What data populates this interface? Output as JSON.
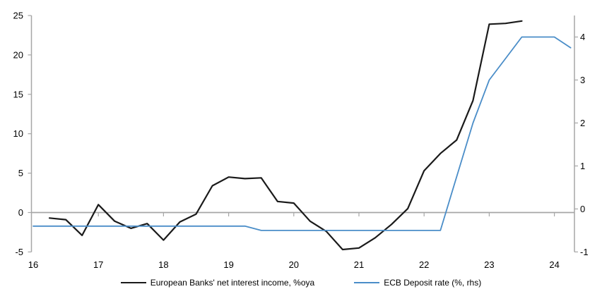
{
  "chart_data": {
    "type": "line",
    "title": "",
    "background": "#ffffff",
    "grid": "zero-line-only",
    "legend_position": "bottom",
    "x_axis": {
      "tick_labels": [
        "16",
        "17",
        "18",
        "19",
        "20",
        "21",
        "22",
        "23",
        "24"
      ],
      "tick_years": [
        16,
        17,
        18,
        19,
        20,
        21,
        22,
        23,
        24
      ],
      "range": [
        16,
        24.3
      ]
    },
    "left_axis": {
      "ticks": [
        25,
        20,
        15,
        10,
        5,
        0,
        -5
      ],
      "range": [
        -5,
        25
      ]
    },
    "right_axis": {
      "ticks": [
        4,
        3,
        2,
        1,
        0,
        -1
      ],
      "range": [
        -1,
        4.5
      ]
    },
    "axis_color": "#a6a6a6",
    "zero_line_color": "#a6a6a6",
    "series": [
      {
        "name": "European Banks' net interest income, %oya",
        "axis": "left",
        "color": "#1a1a1a",
        "width": 2.2,
        "x": [
          16.25,
          16.5,
          16.75,
          17.0,
          17.25,
          17.5,
          17.75,
          18.0,
          18.25,
          18.5,
          18.75,
          19.0,
          19.25,
          19.5,
          19.75,
          20.0,
          20.25,
          20.5,
          20.75,
          21.0,
          21.25,
          21.5,
          21.75,
          22.0,
          22.25,
          22.5,
          22.75,
          23.0,
          23.25,
          23.5
        ],
        "y": [
          -0.7,
          -0.9,
          -2.9,
          1.0,
          -1.1,
          -2.0,
          -1.4,
          -3.5,
          -1.2,
          -0.2,
          3.4,
          4.5,
          4.3,
          4.4,
          1.4,
          1.2,
          -1.1,
          -2.4,
          -4.7,
          -4.5,
          -3.2,
          -1.5,
          0.5,
          5.3,
          7.5,
          9.2,
          14.2,
          23.9,
          24.0,
          24.3
        ]
      },
      {
        "name": "ECB Deposit rate (%, rhs)",
        "axis": "right",
        "color": "#4a8dc8",
        "width": 1.8,
        "x": [
          16.0,
          16.25,
          16.5,
          16.75,
          17.0,
          17.25,
          17.5,
          17.75,
          18.0,
          18.25,
          18.5,
          18.75,
          19.0,
          19.25,
          19.5,
          19.75,
          20.0,
          20.25,
          20.5,
          20.75,
          21.0,
          21.25,
          21.5,
          21.75,
          22.0,
          22.25,
          22.5,
          22.75,
          23.0,
          23.25,
          23.5,
          23.75,
          24.0,
          24.25
        ],
        "y": [
          -0.4,
          -0.4,
          -0.4,
          -0.4,
          -0.4,
          -0.4,
          -0.4,
          -0.4,
          -0.4,
          -0.4,
          -0.4,
          -0.4,
          -0.4,
          -0.4,
          -0.5,
          -0.5,
          -0.5,
          -0.5,
          -0.5,
          -0.5,
          -0.5,
          -0.5,
          -0.5,
          -0.5,
          -0.5,
          -0.5,
          0.75,
          2.0,
          3.0,
          3.5,
          4.0,
          4.0,
          4.0,
          3.75
        ]
      }
    ]
  }
}
